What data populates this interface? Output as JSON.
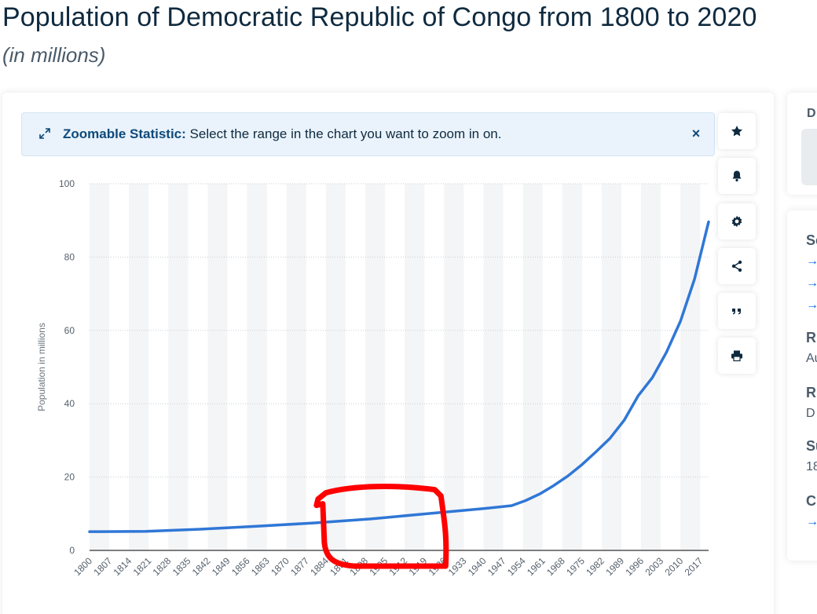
{
  "header": {
    "title": "Population of Democratic Republic of Congo from 1800 to 2020",
    "subtitle": "(in millions)"
  },
  "banner": {
    "label": "Zoomable Statistic:",
    "text": "Select the range in the chart you want to zoom in on.",
    "close": "×"
  },
  "toolbar": {
    "icons": [
      "star-icon",
      "bell-icon",
      "gear-icon",
      "share-icon",
      "quote-icon",
      "print-icon"
    ]
  },
  "side_panel": {
    "top_label": "D",
    "fragments": [
      {
        "text": "Sc",
        "style": "b"
      },
      {
        "text": "→",
        "style": "a"
      },
      {
        "text": "→",
        "style": "a"
      },
      {
        "text": "→",
        "style": "a"
      },
      {
        "text": "R",
        "style": "b"
      },
      {
        "text": "Au",
        "style": "n"
      },
      {
        "text": "R",
        "style": "b"
      },
      {
        "text": "D",
        "style": "n"
      },
      {
        "text": "Su",
        "style": "b"
      },
      {
        "text": "18",
        "style": "n"
      },
      {
        "text": "C",
        "style": "b"
      },
      {
        "text": "→",
        "style": "a"
      }
    ]
  },
  "colors": {
    "line": "#2f77d6",
    "annotation": "#ff0000",
    "accent": "#0f4a7a"
  },
  "chart_data": {
    "type": "line",
    "title": "Population of Democratic Republic of Congo from 1800 to 2020",
    "subtitle": "(in millions)",
    "xlabel": "",
    "ylabel": "Population in millions",
    "ylim": [
      0,
      100
    ],
    "yticks": [
      0,
      20,
      40,
      60,
      80,
      100
    ],
    "xlim": [
      1800,
      2020
    ],
    "xticks": [
      1800,
      1807,
      1814,
      1821,
      1828,
      1835,
      1842,
      1849,
      1856,
      1863,
      1870,
      1877,
      1884,
      1891,
      1898,
      1905,
      1912,
      1919,
      1926,
      1933,
      1940,
      1947,
      1954,
      1961,
      1968,
      1975,
      1982,
      1989,
      1996,
      2003,
      2010,
      2017
    ],
    "grid": true,
    "series": [
      {
        "name": "",
        "x": [
          1800,
          1820,
          1840,
          1860,
          1880,
          1900,
          1920,
          1940,
          1950,
          1955,
          1960,
          1965,
          1970,
          1975,
          1980,
          1985,
          1990,
          1995,
          2000,
          2005,
          2010,
          2015,
          2020
        ],
        "y": [
          5.1,
          5.2,
          5.8,
          6.6,
          7.5,
          8.6,
          10.0,
          11.4,
          12.2,
          13.6,
          15.4,
          17.7,
          20.3,
          23.4,
          26.9,
          30.6,
          35.5,
          42.2,
          47.1,
          54.0,
          62.5,
          74.0,
          89.6
        ]
      }
    ],
    "annotations": [
      {
        "type": "hand-drawn-box",
        "color": "red",
        "x_range": [
          1884,
          1926
        ],
        "y_range": [
          0,
          17
        ]
      }
    ]
  }
}
